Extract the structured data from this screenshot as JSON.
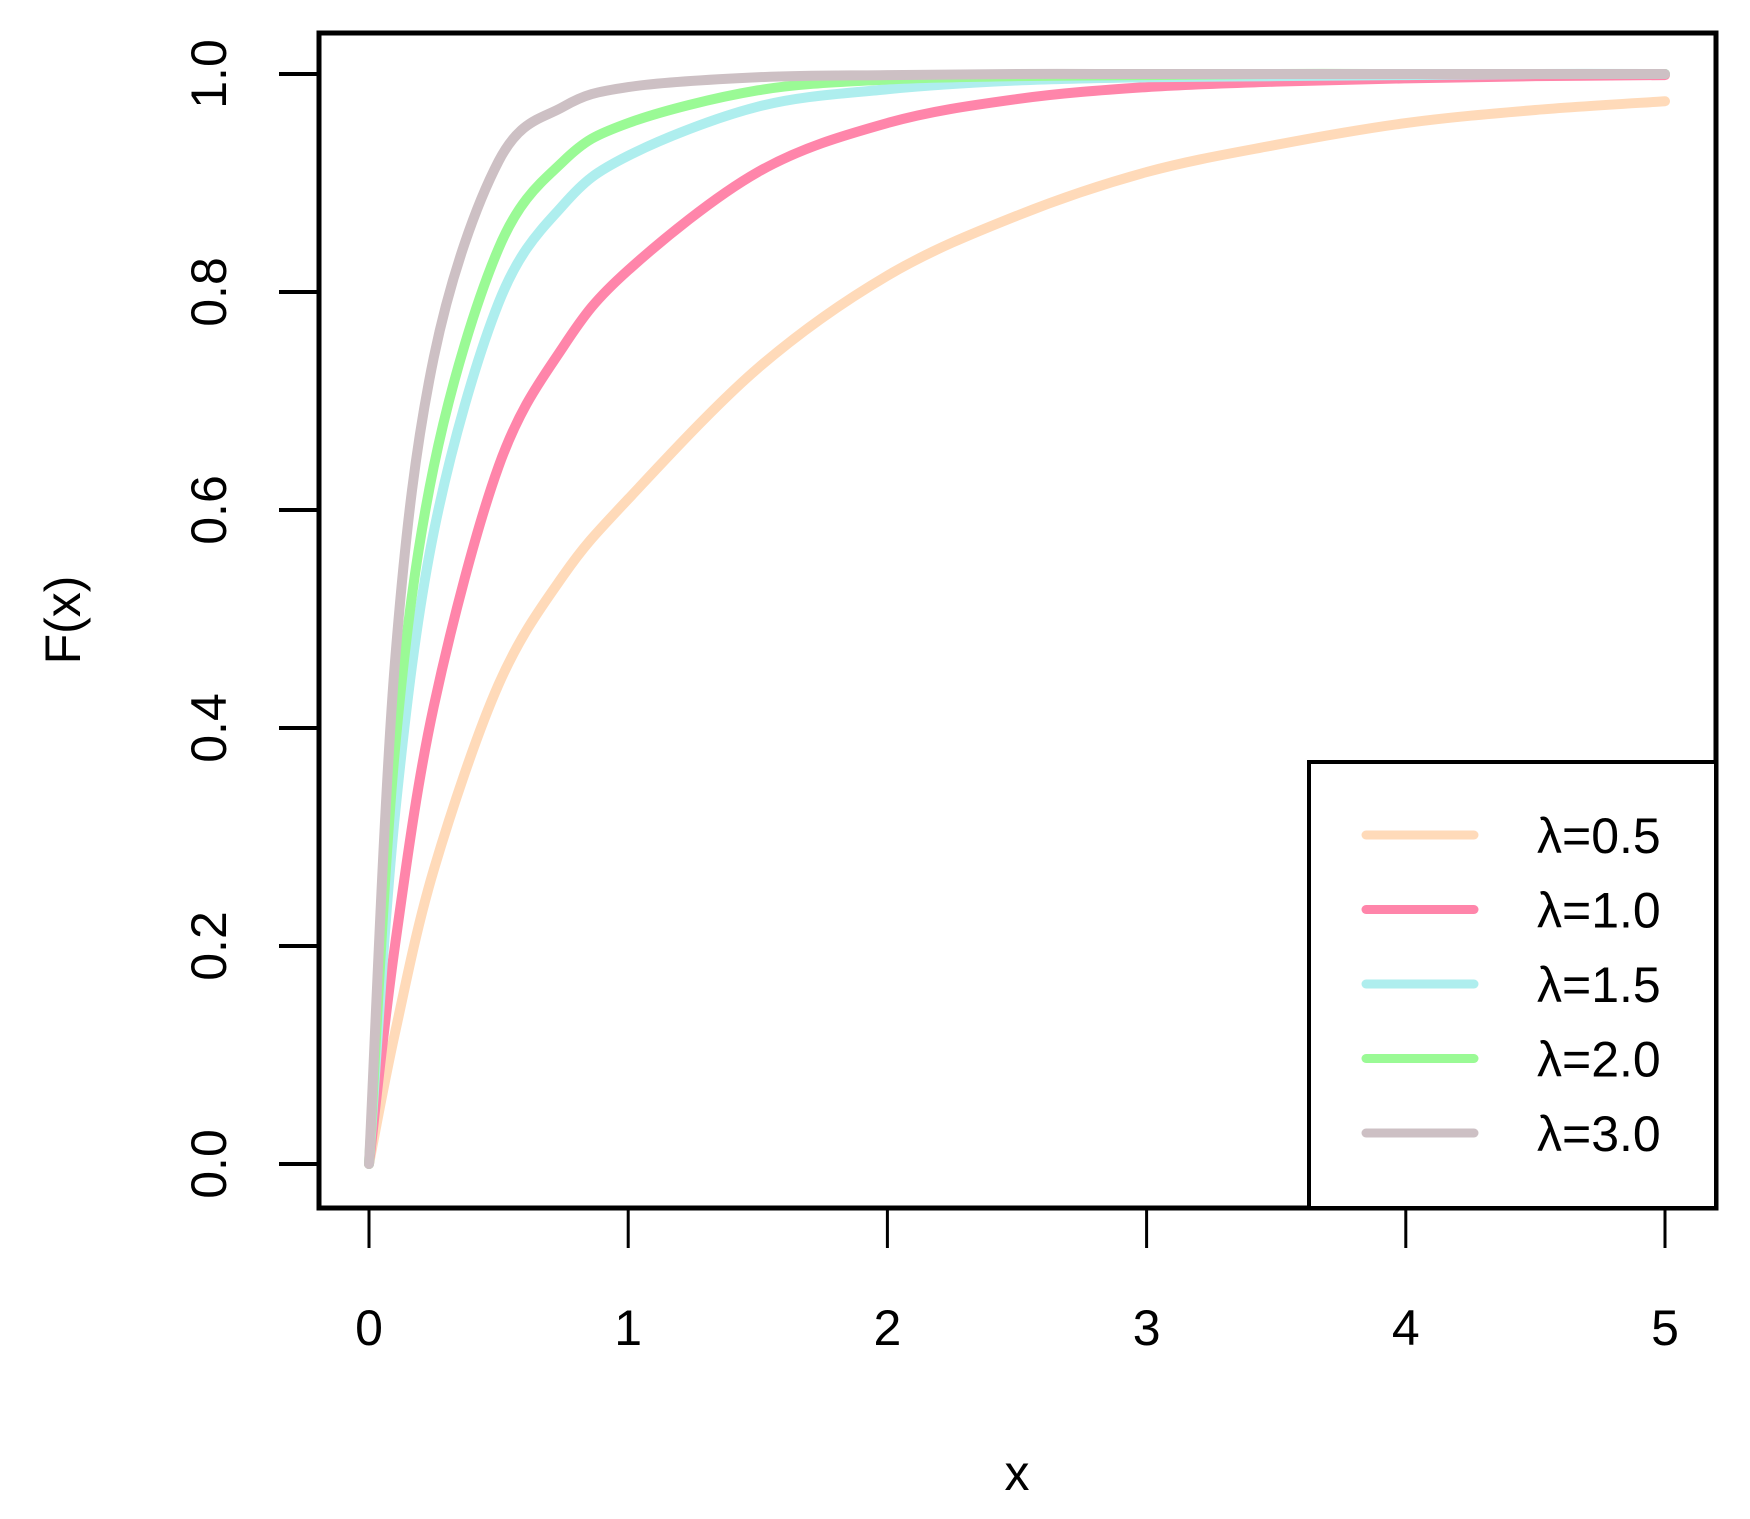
{
  "chart_data": {
    "type": "line",
    "title": "",
    "xlabel": "x",
    "ylabel": "F(x)",
    "xlim": [
      0,
      5
    ],
    "ylim": [
      0,
      1
    ],
    "grid": false,
    "x_ticks": [
      "0",
      "1",
      "2",
      "3",
      "4",
      "5"
    ],
    "y_ticks": [
      "0.0",
      "0.2",
      "0.4",
      "0.6",
      "0.8",
      "1.0"
    ],
    "legend_position": "bottom-right",
    "x": [
      0,
      0.1,
      0.25,
      0.5,
      0.75,
      1.0,
      1.5,
      2.0,
      2.5,
      3.0,
      3.5,
      4.0,
      4.5,
      5.0
    ],
    "series": [
      {
        "name": "λ=0.5",
        "color": "#FFDAB9",
        "values": [
          0,
          0.12,
          0.27,
          0.44,
          0.54,
          0.61,
          0.73,
          0.815,
          0.87,
          0.91,
          0.935,
          0.955,
          0.967,
          0.975
        ]
      },
      {
        "name": "λ=1.0",
        "color": "#FF85AA",
        "values": [
          0,
          0.2,
          0.42,
          0.64,
          0.75,
          0.82,
          0.91,
          0.955,
          0.977,
          0.988,
          0.993,
          0.996,
          0.998,
          0.999
        ]
      },
      {
        "name": "λ=1.5",
        "color": "#AEEEEE",
        "values": [
          0,
          0.32,
          0.58,
          0.79,
          0.88,
          0.925,
          0.97,
          0.986,
          0.994,
          0.997,
          0.998,
          0.999,
          1.0,
          1.0
        ]
      },
      {
        "name": "λ=2.0",
        "color": "#9AFA95",
        "values": [
          0,
          0.38,
          0.64,
          0.84,
          0.92,
          0.955,
          0.985,
          0.995,
          0.998,
          0.999,
          1.0,
          1.0,
          1.0,
          1.0
        ]
      },
      {
        "name": "λ=3.0",
        "color": "#CDC0C4",
        "values": [
          0,
          0.46,
          0.74,
          0.92,
          0.97,
          0.988,
          0.997,
          0.999,
          1.0,
          1.0,
          1.0,
          1.0,
          1.0,
          1.0
        ]
      }
    ]
  }
}
